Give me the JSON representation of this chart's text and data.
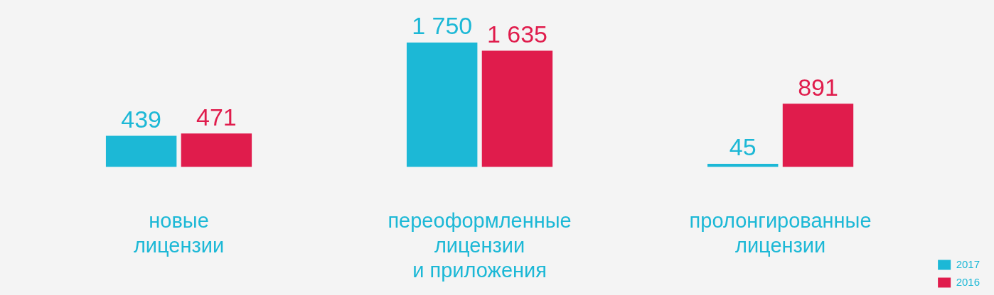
{
  "chart_data": {
    "type": "bar",
    "categories": [
      "новые\nлицензии",
      "переоформленные\nлицензии\nи приложения",
      "пролонгированные\nлицензии"
    ],
    "series": [
      {
        "name": "2017",
        "color": "#1cb8d6",
        "values": [
          439,
          1750,
          45
        ],
        "value_labels": [
          "439",
          "1 750",
          "45"
        ]
      },
      {
        "name": "2016",
        "color": "#e01c4c",
        "values": [
          471,
          1635,
          891
        ],
        "value_labels": [
          "471",
          "1 635",
          "891"
        ]
      }
    ],
    "legend": "bottom right",
    "grid": false
  }
}
